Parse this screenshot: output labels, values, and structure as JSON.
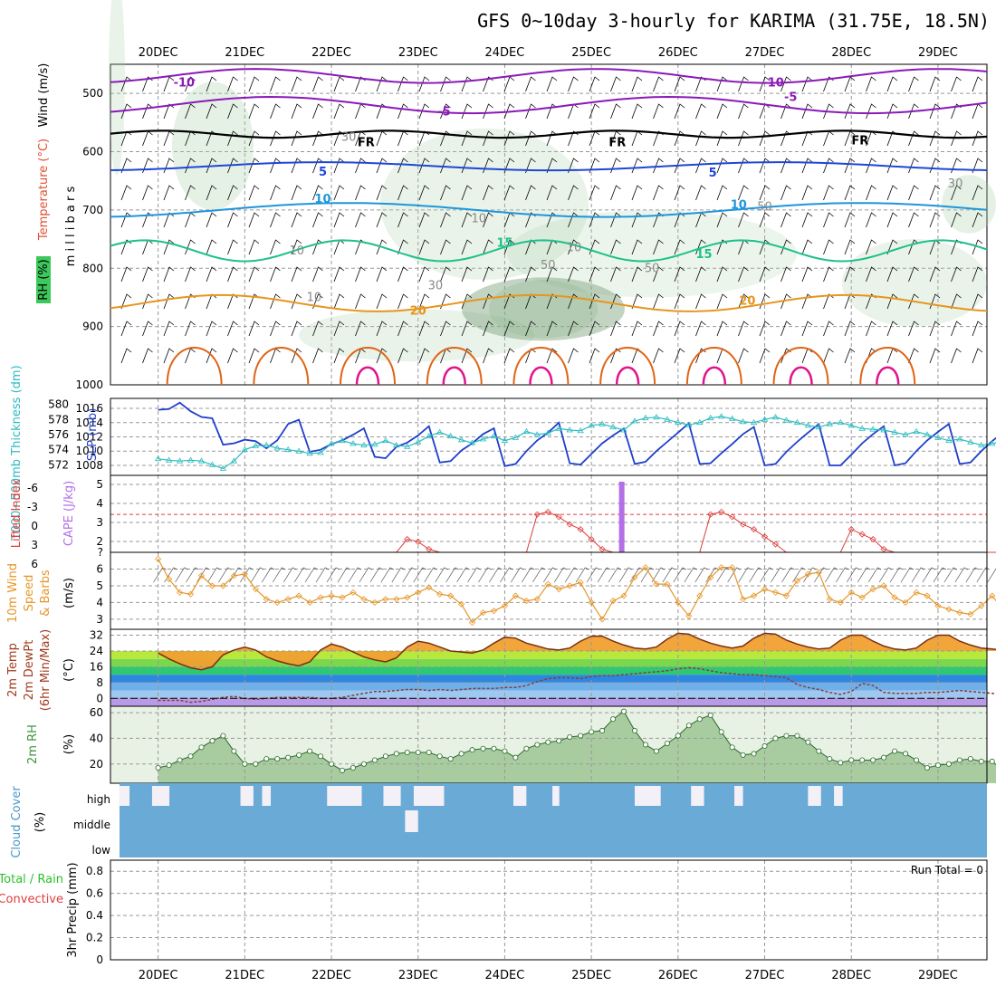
{
  "title": "GFS 0~10day 3-hourly for KARIMA (31.75E, 18.5N)",
  "dates": [
    "20DEC",
    "21DEC",
    "22DEC",
    "23DEC",
    "24DEC",
    "25DEC",
    "26DEC",
    "27DEC",
    "28DEC",
    "29DEC"
  ],
  "colors": {
    "purple": "#8a1ab8",
    "black": "#000000",
    "blue": "#1f47d6",
    "cyan": "#1e96dc",
    "teal": "#1ec08c",
    "orange": "#e6961e",
    "dkorange": "#e06414",
    "magenta": "#e0148c",
    "slp": "#1f3fcc",
    "thick": "#2cbcc0",
    "cape": "#b46ee6",
    "li": "#e03c3c",
    "wind": "#e69628",
    "rh": "#3c963c",
    "cloud": "#6aaad6"
  },
  "chart_data": [
    {
      "type": "line",
      "panel": "upper-air",
      "ylabel_parts": [
        "RH (%)",
        "Temperature (°C)",
        "Wind (m/s)"
      ],
      "yunit": "m i l l i b a r s",
      "yticks": [
        500,
        600,
        700,
        800,
        900,
        1000
      ],
      "ylim": [
        1000,
        450
      ],
      "isotherm_labels": [
        {
          "text": "-10",
          "p": 480,
          "d": 0.3,
          "color": "purple"
        },
        {
          "text": "-10",
          "p": 480,
          "d": 7.1,
          "color": "purple"
        },
        {
          "text": "-5",
          "p": 530,
          "d": 3.3,
          "color": "purple"
        },
        {
          "text": "-5",
          "p": 505,
          "d": 7.3,
          "color": "purple"
        },
        {
          "text": "FR",
          "p": 583,
          "d": 2.4,
          "color": "black"
        },
        {
          "text": "FR",
          "p": 583,
          "d": 5.3,
          "color": "black"
        },
        {
          "text": "FR",
          "p": 580,
          "d": 8.1,
          "color": "black"
        },
        {
          "text": "5",
          "p": 633,
          "d": 1.9,
          "color": "blue"
        },
        {
          "text": "5",
          "p": 635,
          "d": 6.4,
          "color": "blue"
        },
        {
          "text": "10",
          "p": 680,
          "d": 1.9,
          "color": "cyan"
        },
        {
          "text": "10",
          "p": 690,
          "d": 6.7,
          "color": "cyan"
        },
        {
          "text": "15",
          "p": 755,
          "d": 4.0,
          "color": "teal"
        },
        {
          "text": "15",
          "p": 775,
          "d": 6.3,
          "color": "teal"
        },
        {
          "text": "20",
          "p": 872,
          "d": 3.0,
          "color": "orange"
        },
        {
          "text": "20",
          "p": 855,
          "d": 6.8,
          "color": "orange"
        }
      ],
      "rh_labels": [
        {
          "text": "30",
          "p": 575,
          "d": 2.2
        },
        {
          "text": "10",
          "p": 715,
          "d": 3.7
        },
        {
          "text": "10",
          "p": 770,
          "d": 1.6
        },
        {
          "text": "10",
          "p": 850,
          "d": 1.8
        },
        {
          "text": "30",
          "p": 830,
          "d": 3.2
        },
        {
          "text": "50",
          "p": 795,
          "d": 4.5
        },
        {
          "text": "50",
          "p": 800,
          "d": 5.7
        },
        {
          "text": "10",
          "p": 765,
          "d": 4.8
        },
        {
          "text": "30",
          "p": 655,
          "d": 9.2
        },
        {
          "text": "50",
          "p": 695,
          "d": 7.0
        }
      ]
    },
    {
      "type": "line",
      "panel": "slp-thickness",
      "left_label": "1000~500mb Thickness (dm)",
      "right_label": "SLP (mb)",
      "left_ticks": [
        572,
        574,
        576,
        578,
        580
      ],
      "right_ticks": [
        1008,
        1010,
        1012,
        1014,
        1016
      ],
      "left_lim": [
        570.6,
        580.8
      ],
      "right_lim": [
        1006.6,
        1017.4
      ],
      "series": [
        {
          "axis": "right",
          "color": "slp",
          "values": [
            1015.8,
            1015.9,
            1016.8,
            1015.6,
            1014.8,
            1014.6,
            1010.9,
            1011.1,
            1011.6,
            1011.4,
            1010.4,
            1011.5,
            1013.8,
            1014.4,
            1009.9,
            1010.2,
            1011.0,
            1011.5,
            1012.3,
            1013.2,
            1009.2,
            1009.0,
            1010.6,
            1011.2,
            1012.2,
            1013.5,
            1008.4,
            1008.6,
            1010.1,
            1011.1,
            1012.4,
            1013.2,
            1007.9,
            1008.2,
            1010.0,
            1011.5,
            1012.6,
            1014.0,
            1008.3,
            1008.1,
            1009.6,
            1011.1,
            1012.2,
            1013.2,
            1008.2,
            1008.5,
            1010.0,
            1011.3,
            1012.6,
            1013.9,
            1008.2,
            1008.3,
            1009.7,
            1011.0,
            1012.4,
            1013.4,
            1008.0,
            1008.2,
            1009.9,
            1011.3,
            1012.6,
            1013.8,
            1008.0,
            1008.0,
            1009.5,
            1011.1,
            1012.4,
            1013.5,
            1008.0,
            1008.3,
            1010.0,
            1011.5,
            1012.7,
            1013.8,
            1008.2,
            1008.4,
            1010.0,
            1011.4,
            1012.6,
            1012.3,
            1014.0
          ]
        },
        {
          "axis": "left",
          "color": "thick",
          "values": [
            572.8,
            572.6,
            572.5,
            572.6,
            572.5,
            572.0,
            571.5,
            572.5,
            574.0,
            574.5,
            574.6,
            574.2,
            574.0,
            573.8,
            573.5,
            573.6,
            574.8,
            575.2,
            574.8,
            574.6,
            574.7,
            575.2,
            574.6,
            574.4,
            575.0,
            575.8,
            576.3,
            575.8,
            575.3,
            574.9,
            575.4,
            575.8,
            575.2,
            575.6,
            576.4,
            576.0,
            576.2,
            576.8,
            576.6,
            576.5,
            577.2,
            577.4,
            577.0,
            576.6,
            577.8,
            578.2,
            578.3,
            578.0,
            577.6,
            577.3,
            577.6,
            578.2,
            578.4,
            578.1,
            577.7,
            577.6,
            578.0,
            578.3,
            577.9,
            577.6,
            577.2,
            577.0,
            577.4,
            577.6,
            577.2,
            576.8,
            576.7,
            576.6,
            576.3,
            576.0,
            576.4,
            576.0,
            575.6,
            575.2,
            575.4,
            575.0,
            574.6,
            574.8,
            575.1,
            574.7,
            574.5
          ]
        }
      ]
    },
    {
      "type": "line",
      "panel": "cape-li",
      "left_label": "Lifted Index",
      "right_label": "CAPE (J/kg)",
      "left_ticks": [
        "-6",
        "-3",
        "0",
        "3",
        "6"
      ],
      "right_ticks": [
        "5",
        "4",
        "3",
        "2",
        "?"
      ],
      "li_zero_line": 0,
      "cape_bar": {
        "d": 5.35,
        "value": 5
      },
      "series": [
        {
          "color": "li",
          "values": [
            8,
            8,
            8,
            8,
            8,
            8,
            8,
            8,
            8,
            8,
            8,
            8,
            8,
            8,
            8,
            8,
            8,
            8,
            8,
            8,
            8,
            8,
            8,
            5,
            5.5,
            7,
            8,
            8,
            8,
            8,
            8,
            8,
            8,
            8,
            8,
            0,
            -0.5,
            0.5,
            2,
            3,
            5,
            7,
            8,
            8,
            8,
            8,
            8,
            8,
            8,
            8,
            8,
            0,
            -0.5,
            0.5,
            2,
            3,
            4.5,
            6,
            8,
            8,
            8,
            8,
            8,
            8,
            3,
            4,
            5,
            7,
            8,
            8,
            8,
            8,
            8,
            8,
            8,
            8,
            8,
            8,
            8,
            8,
            8
          ]
        }
      ]
    },
    {
      "type": "line",
      "panel": "wind10",
      "ylabel_parts": [
        "10m Wind",
        "Speed",
        "& Barbs"
      ],
      "yunit": "(m/s)",
      "yticks": [
        3,
        4,
        5,
        6
      ],
      "ylim": [
        2.4,
        7.0
      ],
      "series": [
        {
          "color": "wind",
          "values": [
            6.6,
            5.4,
            4.6,
            4.5,
            5.6,
            5.0,
            5.0,
            5.6,
            5.7,
            4.8,
            4.2,
            4.0,
            4.2,
            4.4,
            4.0,
            4.3,
            4.4,
            4.3,
            4.6,
            4.2,
            4.0,
            4.2,
            4.2,
            4.3,
            4.6,
            4.9,
            4.5,
            4.4,
            3.9,
            2.8,
            3.4,
            3.5,
            3.8,
            4.4,
            4.1,
            4.2,
            5.1,
            4.8,
            5.0,
            5.2,
            4.0,
            3.0,
            4.1,
            4.4,
            5.5,
            6.1,
            5.1,
            5.1,
            4.0,
            3.2,
            4.4,
            5.5,
            6.1,
            6.1,
            4.2,
            4.4,
            4.8,
            4.6,
            4.4,
            5.3,
            5.7,
            5.8,
            4.2,
            4.0,
            4.6,
            4.3,
            4.8,
            5.0,
            4.3,
            4.0,
            4.6,
            4.4,
            3.8,
            3.6,
            3.4,
            3.3,
            3.8,
            4.4,
            3.6,
            4.2,
            4.0
          ]
        }
      ]
    },
    {
      "type": "area",
      "panel": "temp2m",
      "ylabel_parts": [
        "2m Temp",
        "2m DewPt",
        "(6hr Min/Max)"
      ],
      "yunit": "(°C)",
      "yticks": [
        0,
        8,
        16,
        24,
        32
      ],
      "ylim": [
        -4,
        35
      ],
      "series": [
        {
          "name": "temp",
          "values": [
            23,
            20,
            17.5,
            15.5,
            14.5,
            16,
            22,
            24.5,
            26,
            24.5,
            21,
            19,
            17.5,
            16.5,
            18.5,
            24.5,
            27.5,
            26,
            23.5,
            21,
            19.5,
            18.5,
            20.5,
            26,
            29,
            28,
            26,
            24,
            23.5,
            23,
            24.5,
            28,
            31,
            30.5,
            28,
            26.5,
            25,
            24.5,
            25.5,
            29,
            31.5,
            31.5,
            29,
            27,
            25.5,
            25,
            26,
            30,
            33,
            32.5,
            30,
            28,
            26.5,
            25.5,
            26.5,
            30.5,
            33,
            32.5,
            29.5,
            27.5,
            26,
            25,
            25.5,
            29.5,
            32,
            32,
            29,
            26.5,
            25,
            24.5,
            25.5,
            29.5,
            32,
            32,
            29,
            27,
            25.5,
            25,
            24.5,
            23.5,
            23.5
          ]
        },
        {
          "name": "dewpt",
          "values": [
            -1,
            -1,
            -1,
            -2,
            -1.5,
            -0.5,
            0.5,
            1,
            0,
            -0.5,
            0,
            0.5,
            0.5,
            0.5,
            0.5,
            0,
            0,
            0.5,
            1.5,
            2.5,
            3.5,
            3.5,
            4,
            4.5,
            4.5,
            4,
            4.5,
            4,
            4.5,
            5,
            5,
            5,
            5.5,
            5.5,
            6.5,
            8.5,
            10,
            10.5,
            10.5,
            10,
            11,
            11.5,
            11.5,
            12,
            12.5,
            13,
            13.5,
            14,
            15,
            15.5,
            15,
            14,
            13,
            12.5,
            12,
            12,
            11.5,
            11,
            10.5,
            7,
            5.5,
            4.5,
            3,
            2,
            3.5,
            7.5,
            6.5,
            3,
            2.5,
            2.5,
            2.5,
            3,
            3,
            3.5,
            4,
            3.5,
            3,
            2.5,
            2,
            1.5,
            1
          ]
        }
      ]
    },
    {
      "type": "area",
      "panel": "rh2m",
      "ylabel_parts": [
        "2m RH"
      ],
      "yunit": "(%)",
      "yticks": [
        20,
        40,
        60
      ],
      "ylim": [
        5,
        65
      ],
      "series": [
        {
          "name": "rh",
          "values": [
            17,
            19,
            23,
            26,
            33,
            38,
            42,
            30,
            20,
            20,
            24,
            24,
            25,
            27,
            30,
            26,
            20,
            15,
            17,
            20,
            23,
            26,
            28,
            29,
            29,
            29,
            26,
            24,
            28,
            31,
            32,
            32,
            30,
            25,
            32,
            35,
            37,
            38,
            41,
            42,
            45,
            46,
            55,
            61,
            46,
            35,
            30,
            36,
            42,
            50,
            55,
            58,
            45,
            33,
            27,
            28,
            34,
            40,
            42,
            42,
            37,
            30,
            24,
            21,
            23,
            23,
            23,
            25,
            30,
            28,
            23,
            17,
            19,
            20,
            23,
            24,
            22,
            22,
            15,
            12,
            16,
            17,
            18,
            19,
            17
          ]
        }
      ]
    },
    {
      "type": "bar",
      "panel": "cloud",
      "ylabel": "Cloud Cover",
      "yunit": "(%)",
      "levels": [
        "high",
        "middle",
        "low"
      ],
      "high_gaps": [
        [
          0.0,
          0.12
        ],
        [
          0.38,
          0.58
        ],
        [
          1.4,
          1.55
        ],
        [
          1.65,
          1.75
        ],
        [
          2.4,
          2.8
        ],
        [
          3.05,
          3.25
        ],
        [
          3.4,
          3.75
        ],
        [
          4.55,
          4.7
        ],
        [
          5.0,
          5.08
        ],
        [
          5.95,
          6.25
        ],
        [
          6.6,
          6.75
        ],
        [
          7.1,
          7.2
        ],
        [
          7.95,
          8.1
        ],
        [
          8.25,
          8.35
        ]
      ],
      "middle_gaps": [
        [
          3.3,
          3.45
        ]
      ]
    },
    {
      "type": "bar",
      "panel": "precip",
      "ylabel_parts": [
        "Total / Rain",
        "Convective"
      ],
      "yunit": "3hr Precip (mm)",
      "yticks": [
        "0",
        "0.2",
        "0.4",
        "0.6",
        "0.8"
      ],
      "ylim": [
        0,
        0.9
      ],
      "run_total": "Run Total = 0",
      "values": []
    }
  ]
}
